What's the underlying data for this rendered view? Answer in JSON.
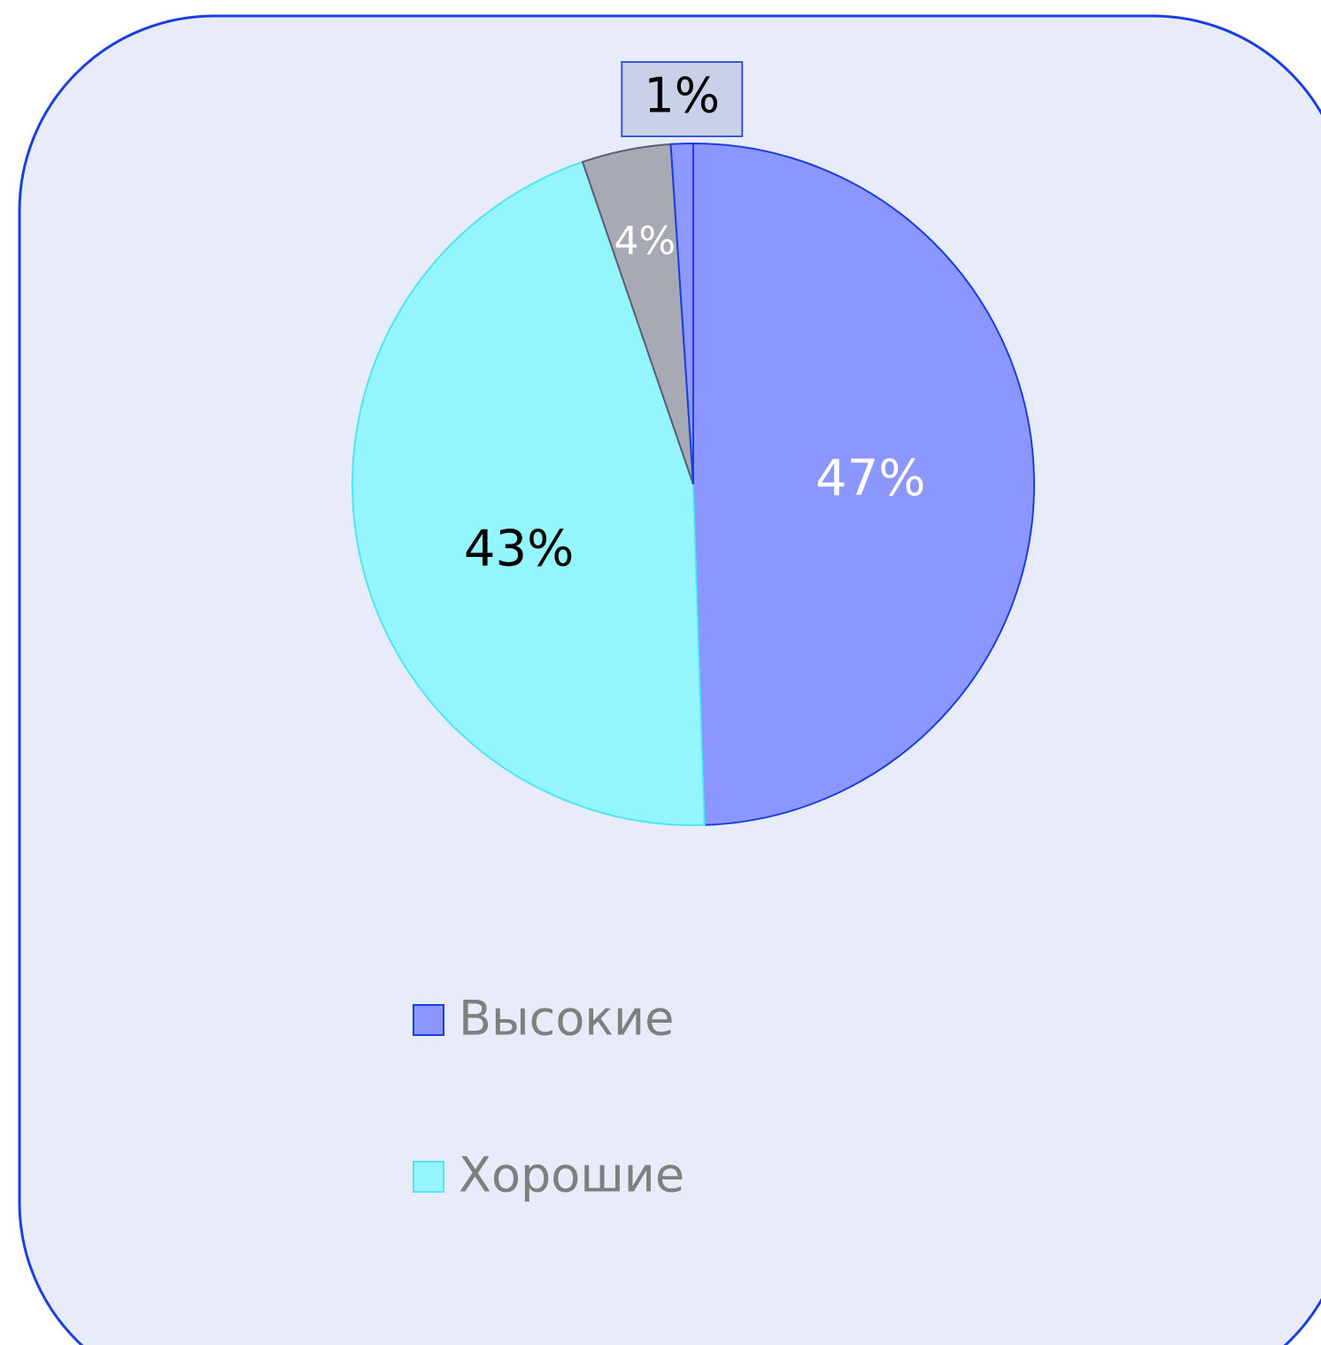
{
  "chart_data": {
    "type": "pie",
    "categories": [
      "Высокие",
      "Хорошие",
      null,
      null
    ],
    "values": [
      47,
      43,
      4,
      1
    ],
    "value_labels": [
      "47%",
      "43%",
      "4%",
      "1%"
    ],
    "colors": [
      "#8c96ff",
      "#95f5fd",
      "#a7a9b4",
      "#8e99ff"
    ],
    "label_colors": [
      "#ffffff",
      "#000000",
      "#ffffff",
      "#000000"
    ],
    "legend": "bottom"
  }
}
